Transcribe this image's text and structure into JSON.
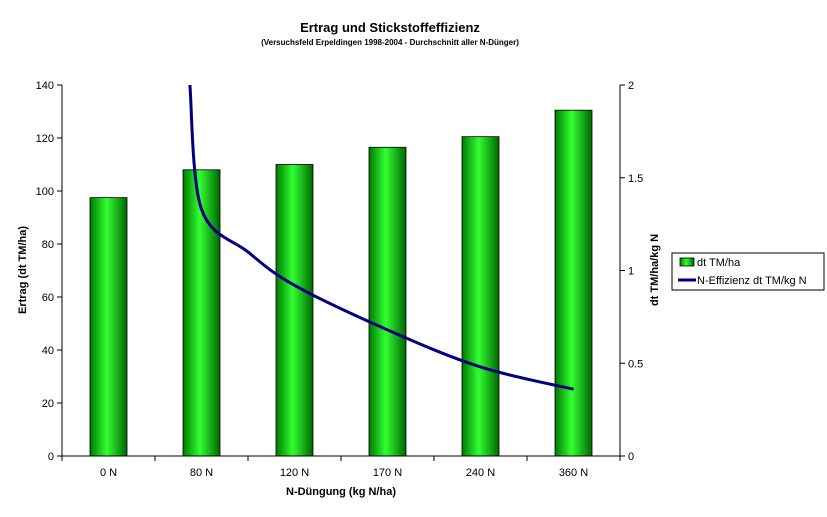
{
  "chart_data": {
    "type": "bar",
    "title": "Ertrag und Stickstoffeffizienz",
    "subtitle": "(Versuchsfeld Erpeldingen 1998-2004 - Durchschnitt aller N-Dünger)",
    "xlabel": "N-Düngung (kg N/ha)",
    "ylabel": "Ertrag (dt TM/ha)",
    "y2label": "dt TM/ha/kg N",
    "categories": [
      "0 N",
      "80 N",
      "120 N",
      "170 N",
      "240 N",
      "360 N"
    ],
    "ylim": [
      0,
      140
    ],
    "yticks": [
      "0",
      "20",
      "40",
      "60",
      "80",
      "100",
      "120",
      "140"
    ],
    "y2lim": [
      0,
      2
    ],
    "y2ticks": [
      "0",
      "0.5",
      "1",
      "1.5",
      "2"
    ],
    "grid": false,
    "legend_position": "right",
    "series": [
      {
        "name": "dt TM/ha",
        "type": "bar",
        "axis": "left",
        "color": "#00cc00",
        "values": [
          97.5,
          108,
          110,
          116.5,
          120.5,
          130.5
        ]
      },
      {
        "name": "N-Effizienz dt TM/kg N",
        "type": "line",
        "axis": "right",
        "color": "#000080",
        "x": [
          70,
          80,
          100,
          120,
          170,
          240,
          360
        ],
        "values": [
          2.0,
          1.33,
          1.1,
          0.92,
          0.68,
          0.48,
          0.36
        ]
      }
    ]
  }
}
